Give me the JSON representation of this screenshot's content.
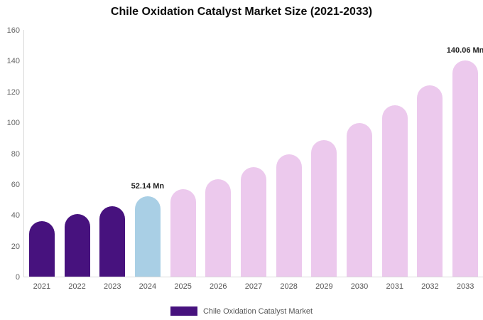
{
  "title": "Chile Oxidation Catalyst Market Size (2021-2033)",
  "legend": {
    "label": "Chile Oxidation Catalyst Market",
    "color": "#47127e"
  },
  "chart_data": {
    "type": "bar",
    "title": "Chile Oxidation Catalyst Market Size (2021-2033)",
    "categories": [
      "2021",
      "2022",
      "2023",
      "2024",
      "2025",
      "2026",
      "2027",
      "2028",
      "2029",
      "2030",
      "2031",
      "2032",
      "2033"
    ],
    "values": [
      36,
      40.5,
      45.5,
      52.14,
      56.5,
      63,
      71,
      79.5,
      88.5,
      99.5,
      111,
      124,
      140.06
    ],
    "unit": "Mn",
    "bar_colors": [
      "#47127e",
      "#47127e",
      "#47127e",
      "#a9cfe5",
      "#ecc9ed",
      "#ecc9ed",
      "#ecc9ed",
      "#ecc9ed",
      "#ecc9ed",
      "#ecc9ed",
      "#ecc9ed",
      "#ecc9ed",
      "#ecc9ed"
    ],
    "xlabel": "",
    "ylabel": "",
    "ylim": [
      0,
      160
    ],
    "yticks": [
      0,
      20,
      40,
      60,
      80,
      100,
      120,
      140,
      160
    ],
    "grid": false,
    "legend_position": "bottom",
    "annotations": [
      {
        "category": "2024",
        "text": "52.14 Mn"
      },
      {
        "category": "2033",
        "text": "140.06 Mn"
      }
    ]
  }
}
